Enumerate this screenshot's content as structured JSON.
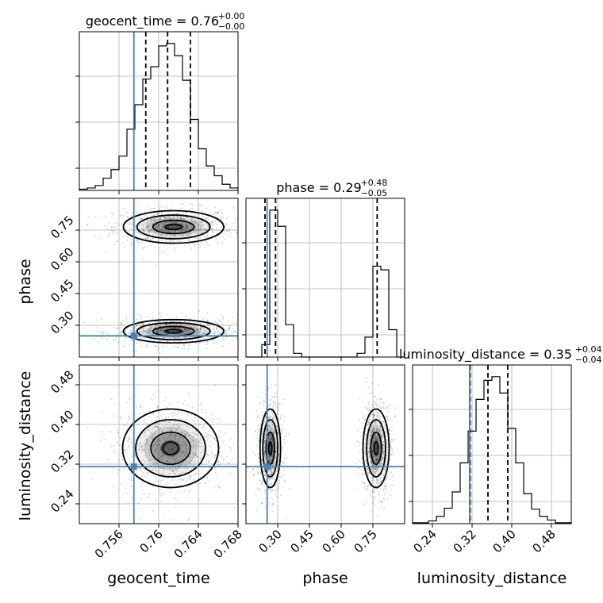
{
  "chart_data": {
    "type": "corner",
    "grid": true,
    "parameters": [
      "geocent_time",
      "phase",
      "luminosity_distance"
    ],
    "truths": {
      "geocent_time": 0.7575,
      "phase": 0.25,
      "luminosity_distance": 0.315
    },
    "panels": [
      {
        "id": "hist-geocent_time",
        "type": "histogram",
        "param": "geocent_time",
        "title": {
          "text": "geocent_time = 0.76",
          "sup": "+0.00",
          "sub": "−0.00"
        },
        "xlim": [
          0.752,
          0.768
        ],
        "xticks": [
          0.756,
          0.76,
          0.764,
          0.768
        ],
        "quantiles": [
          0.7587,
          0.7609,
          0.7632
        ],
        "bins": [
          0.752,
          0.7528,
          0.7536,
          0.7544,
          0.7552,
          0.756,
          0.7568,
          0.7576,
          0.7584,
          0.7592,
          0.76,
          0.7608,
          0.7616,
          0.7624,
          0.7632,
          0.764,
          0.7648,
          0.7656,
          0.7664,
          0.7672,
          0.768
        ],
        "values": [
          1,
          2,
          4,
          10,
          17,
          28,
          50,
          70,
          91,
          101,
          118,
          120,
          110,
          90,
          58,
          34,
          20,
          12,
          5,
          2
        ]
      },
      {
        "id": "hist-phase",
        "type": "histogram",
        "param": "phase",
        "title": {
          "text": "phase = 0.29",
          "sup": "+0.48",
          "sub": "−0.05"
        },
        "xlim": [
          0.15,
          0.9
        ],
        "xticks": [
          0.3,
          0.45,
          0.6,
          0.75
        ],
        "quantiles": [
          0.24,
          0.29,
          0.77
        ],
        "bins": [
          0.15,
          0.1875,
          0.225,
          0.2625,
          0.3,
          0.3375,
          0.375,
          0.4125,
          0.45,
          0.4875,
          0.525,
          0.5625,
          0.6,
          0.6375,
          0.675,
          0.7125,
          0.75,
          0.7875,
          0.825,
          0.8625,
          0.9
        ],
        "values": [
          0,
          0,
          10,
          118,
          105,
          26,
          3,
          0,
          0,
          0,
          0,
          0,
          0,
          0,
          3,
          16,
          73,
          70,
          22,
          0
        ]
      },
      {
        "id": "hist-luminosity_distance",
        "type": "histogram",
        "param": "luminosity_distance",
        "title": {
          "text": "luminosity_distance = 0.35",
          "sup": "+0.04",
          "sub": "−0.04"
        },
        "xlim": [
          0.2,
          0.52
        ],
        "xticks": [
          0.24,
          0.32,
          0.4,
          0.48
        ],
        "quantiles": [
          0.316,
          0.352,
          0.392
        ],
        "bins": [
          0.2,
          0.216,
          0.232,
          0.248,
          0.264,
          0.28,
          0.296,
          0.312,
          0.328,
          0.344,
          0.36,
          0.376,
          0.392,
          0.408,
          0.424,
          0.44,
          0.456,
          0.472,
          0.488,
          0.504,
          0.52
        ],
        "values": [
          1,
          1,
          3,
          8,
          17,
          35,
          67,
          102,
          137,
          158,
          162,
          144,
          105,
          67,
          33,
          16,
          8,
          4,
          1,
          1
        ]
      },
      {
        "id": "contour-phase-vs-geocent_time",
        "type": "scatter-contour",
        "x": "geocent_time",
        "y": "phase",
        "xlim": [
          0.752,
          0.768
        ],
        "ylim": [
          0.15,
          0.9
        ],
        "yticks": [
          0.3,
          0.45,
          0.6,
          0.75
        ],
        "modes": [
          {
            "x": 0.7615,
            "y": 0.765,
            "sx": 0.0023,
            "sy": 0.035
          },
          {
            "x": 0.7615,
            "y": 0.272,
            "sx": 0.0023,
            "sy": 0.025
          }
        ]
      },
      {
        "id": "contour-luminosity_distance-vs-geocent_time",
        "type": "scatter-contour",
        "x": "geocent_time",
        "y": "luminosity_distance",
        "xlim": [
          0.752,
          0.768
        ],
        "ylim": [
          0.2,
          0.52
        ],
        "xticks": [
          0.756,
          0.76,
          0.764,
          0.768
        ],
        "yticks": [
          0.24,
          0.32,
          0.4,
          0.48
        ],
        "modes": [
          {
            "x": 0.7612,
            "y": 0.352,
            "sx": 0.0022,
            "sy": 0.036
          }
        ]
      },
      {
        "id": "contour-luminosity_distance-vs-phase",
        "type": "scatter-contour",
        "x": "phase",
        "y": "luminosity_distance",
        "xlim": [
          0.15,
          0.9
        ],
        "ylim": [
          0.2,
          0.52
        ],
        "xticks": [
          0.3,
          0.45,
          0.6,
          0.75
        ],
        "modes": [
          {
            "x": 0.265,
            "y": 0.352,
            "sx": 0.022,
            "sy": 0.036
          },
          {
            "x": 0.765,
            "y": 0.352,
            "sx": 0.028,
            "sy": 0.036
          }
        ]
      }
    ],
    "axis_labels": {
      "x": [
        "geocent_time",
        "phase",
        "luminosity_distance"
      ],
      "y": [
        "phase",
        "luminosity_distance"
      ]
    }
  }
}
